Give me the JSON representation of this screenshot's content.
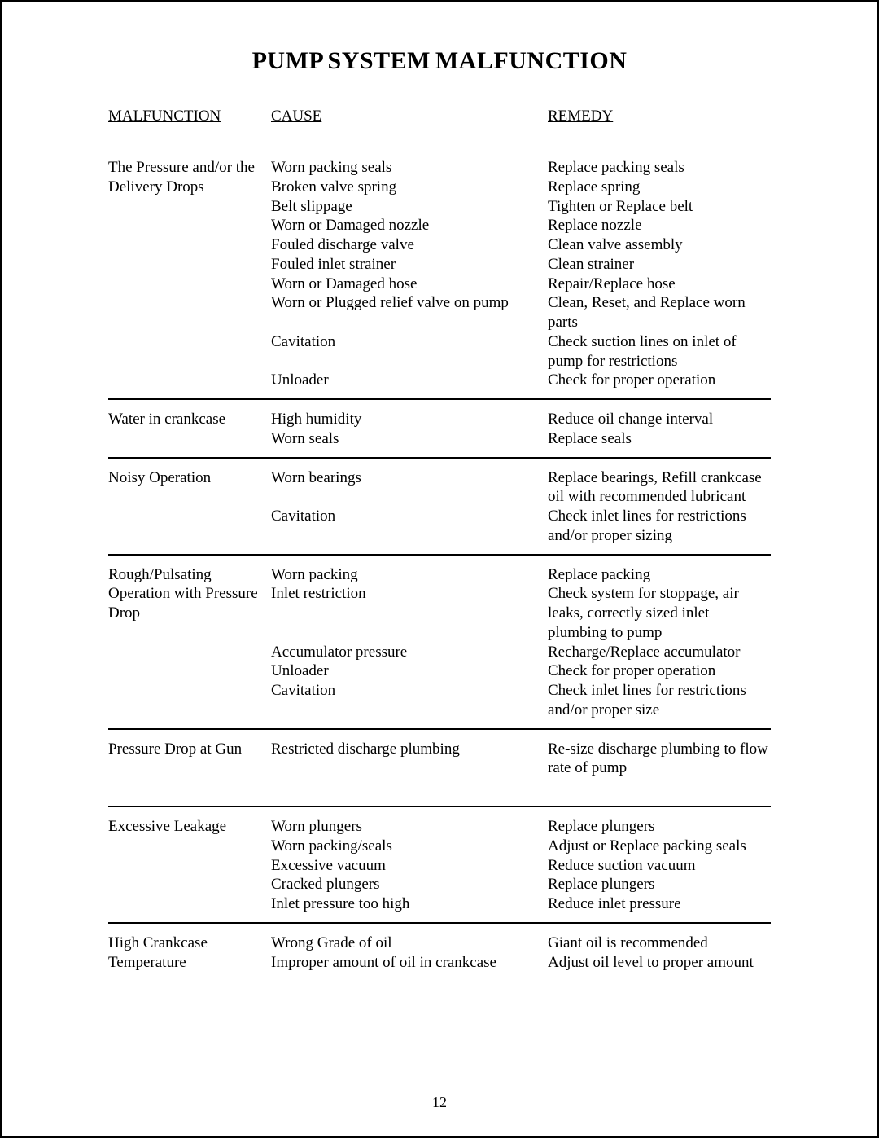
{
  "title": "PUMP SYSTEM MALFUNCTION",
  "page_number": "12",
  "headers": {
    "malfunction": "MALFUNCTION",
    "cause": "CAUSE",
    "remedy": "REMEDY"
  },
  "sections": [
    {
      "malfunction": "The Pressure and/or the Delivery Drops",
      "rows": [
        {
          "cause": "Worn packing seals",
          "remedy": "Replace packing seals"
        },
        {
          "cause": "Broken valve spring",
          "remedy": "Replace spring"
        },
        {
          "cause": "Belt slippage",
          "remedy": "Tighten or Replace belt"
        },
        {
          "cause": "Worn or Damaged nozzle",
          "remedy": "Replace nozzle"
        },
        {
          "cause": "Fouled discharge valve",
          "remedy": "Clean valve assembly"
        },
        {
          "cause": "Fouled inlet strainer",
          "remedy": "Clean strainer"
        },
        {
          "cause": "Worn or Damaged hose",
          "remedy": "Repair/Replace hose"
        },
        {
          "cause": "Worn or Plugged relief valve on pump",
          "remedy": "Clean, Reset, and Replace worn parts"
        },
        {
          "cause": "Cavitation",
          "remedy": "Check suction lines on inlet of pump for restrictions"
        },
        {
          "cause": "Unloader",
          "remedy": "Check for proper operation"
        }
      ]
    },
    {
      "malfunction": "Water in crankcase",
      "rows": [
        {
          "cause": "High humidity",
          "remedy": "Reduce oil change interval"
        },
        {
          "cause": "Worn seals",
          "remedy": "Replace seals"
        }
      ]
    },
    {
      "malfunction": "Noisy Operation",
      "rows": [
        {
          "cause": "Worn bearings",
          "remedy": "Replace bearings, Refill crankcase oil with recommended lubricant"
        },
        {
          "cause": "Cavitation",
          "remedy": "Check inlet lines for restrictions and/or proper sizing"
        }
      ]
    },
    {
      "malfunction": "Rough/Pulsating Operation with Pressure Drop",
      "rows": [
        {
          "cause": "Worn packing",
          "remedy": "Replace packing"
        },
        {
          "cause": "Inlet restriction",
          "remedy": "Check system for stoppage, air leaks, correctly sized inlet plumbing to pump"
        },
        {
          "cause": "Accumulator pressure",
          "remedy": "Recharge/Replace accumulator"
        },
        {
          "cause": "Unloader",
          "remedy": "Check for proper operation"
        },
        {
          "cause": "Cavitation",
          "remedy": "Check inlet lines for restrictions and/or proper size"
        }
      ]
    },
    {
      "malfunction": "Pressure Drop at Gun",
      "extra_bottom": true,
      "rows": [
        {
          "cause": "Restricted discharge plumbing",
          "remedy": "Re-size discharge plumbing to flow rate of pump"
        }
      ]
    },
    {
      "malfunction": "Excessive Leakage",
      "rows": [
        {
          "cause": "Worn plungers",
          "remedy": "Replace plungers"
        },
        {
          "cause": "Worn packing/seals",
          "remedy": "Adjust or Replace packing seals"
        },
        {
          "cause": "Excessive vacuum",
          "remedy": "Reduce suction vacuum"
        },
        {
          "cause": "Cracked plungers",
          "remedy": "Replace plungers"
        },
        {
          "cause": "Inlet pressure too high",
          "remedy": "Reduce inlet pressure"
        }
      ]
    },
    {
      "malfunction": "High Crankcase Temperature",
      "rows": [
        {
          "cause": "Wrong Grade of oil",
          "remedy": "Giant oil is recommended"
        },
        {
          "cause": "Improper amount of oil in crankcase",
          "remedy": "Adjust oil level to proper amount"
        }
      ]
    }
  ]
}
